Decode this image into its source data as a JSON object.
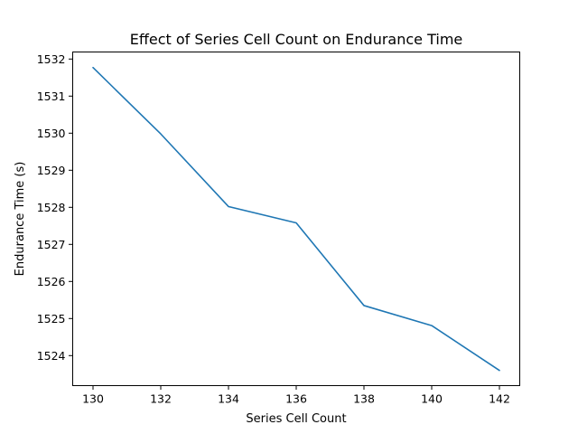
{
  "chart_data": {
    "type": "line",
    "title": "Effect of Series Cell Count on Endurance Time",
    "xlabel": "Series Cell Count",
    "ylabel": "Endurance Time (s)",
    "x": [
      130,
      132,
      134,
      136,
      138,
      140,
      142
    ],
    "series": [
      {
        "values": [
          1531.77,
          1529.98,
          1528.02,
          1527.58,
          1525.35,
          1524.81,
          1523.6
        ],
        "color": "#1f77b4"
      }
    ],
    "xlim": [
      129.4,
      142.6
    ],
    "ylim": [
      1523.19,
      1532.19
    ],
    "xticks": [
      130,
      132,
      134,
      136,
      138,
      140,
      142
    ],
    "yticks": [
      1524,
      1525,
      1526,
      1527,
      1528,
      1529,
      1530,
      1531,
      1532
    ],
    "grid": false,
    "legend": false
  }
}
